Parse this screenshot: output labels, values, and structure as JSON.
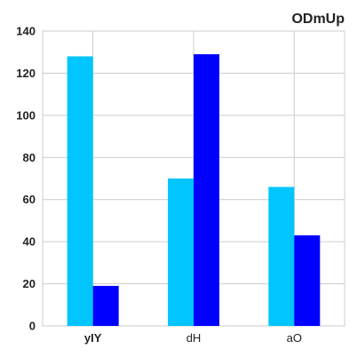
{
  "chart_data": {
    "type": "bar",
    "title": "ODmUp",
    "xlabel": "",
    "ylabel": "",
    "categories": [
      "yIY",
      "dH",
      "aO"
    ],
    "series": [
      {
        "values": [
          128,
          70,
          66
        ],
        "color": "#00c5ff"
      },
      {
        "values": [
          19,
          129,
          43
        ],
        "color": "#0000ff"
      }
    ],
    "ylim": [
      0,
      140
    ],
    "yticks": [
      0,
      20,
      40,
      60,
      80,
      100,
      120,
      140
    ],
    "grid": true,
    "legend": "none"
  }
}
